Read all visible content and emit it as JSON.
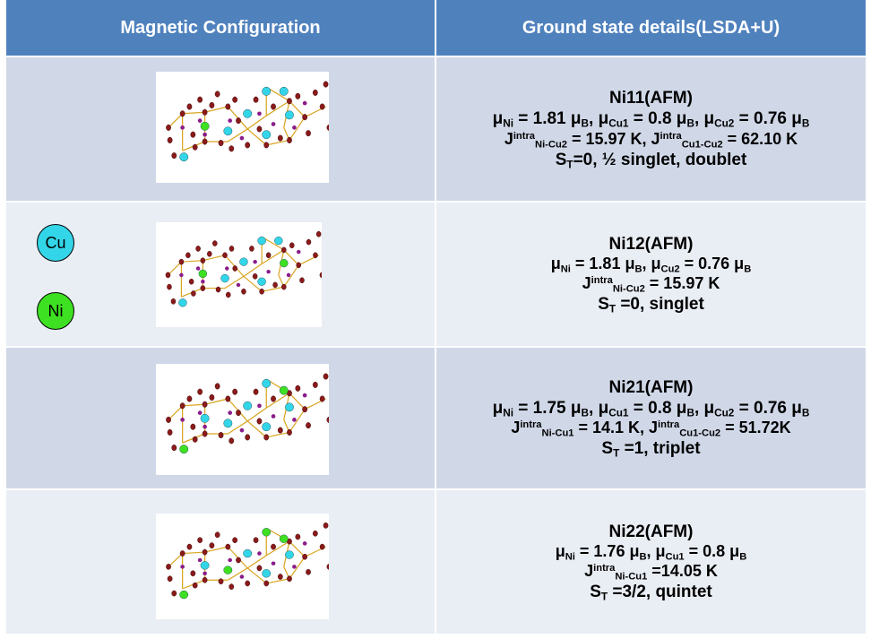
{
  "header": {
    "col1": "Magnetic Configuration",
    "col2": "Ground state details(LSDA+U)"
  },
  "legend": {
    "cu": "Cu",
    "ni": "Ni"
  },
  "colors": {
    "cu_atom": "#33d6e8",
    "ni_atom": "#3ee022",
    "o_atom": "#8b1a1a",
    "p_atom": "#8a1c8a",
    "bond": "#d9a521",
    "highlight_text": "#7030a0"
  },
  "rows": [
    {
      "name": "Ni11(AFM)",
      "moments": {
        "a": "μ",
        "a_sub": "Ni",
        "a_val": " = 1.81 μ",
        "a_unit": "B",
        "b": ", μ",
        "b_sub": "Cu1",
        "b_val": " = 0.8 μ",
        "b_unit": "B",
        "c": ", μ",
        "c_sub": "Cu2",
        "c_val": " = 0.76 μ",
        "c_unit": "B"
      },
      "coupling": {
        "j1": "J",
        "j1_sup": "intra",
        "j1_sub": "Ni-Cu2",
        "j1_val": " = 15.97 K,  ",
        "j2": "J",
        "j2_sup": "intra",
        "j2_sub": "Cu1-Cu2",
        "j2_val": " = 62.10 K"
      },
      "state": {
        "s": "S",
        "s_sub": "T",
        "s_val": "=0, ½ singlet, doublet"
      }
    },
    {
      "name": "Ni12(AFM)",
      "moments": {
        "a": "μ",
        "a_sub": "Ni",
        "a_val": " = 1.81 μ",
        "a_unit": "B",
        "b": ", μ",
        "b_sub": "Cu2",
        "b_val": " = 0.76 μ",
        "b_unit": "B"
      },
      "coupling": {
        "j1": "J",
        "j1_sup": "intra",
        "j1_sub": "Ni-Cu2",
        "j1_val": " = 15.97 K"
      },
      "state": {
        "s": "S",
        "s_sub": "T",
        "s_val": " =0, singlet"
      }
    },
    {
      "name": "Ni21(AFM)",
      "moments": {
        "a": "μ",
        "a_sub": "Ni",
        "a_val": " = 1.75 μ",
        "a_unit": "B",
        "b": ", μ",
        "b_sub": "Cu1",
        "b_val": " = 0.8 μ",
        "b_unit": "B",
        "c": ", μ",
        "c_sub": "Cu2",
        "c_val": " = 0.76 μ",
        "c_unit": "B"
      },
      "coupling": {
        "j1": "J",
        "j1_sup": "intra",
        "j1_sub": "Ni-Cu1",
        "j1_val": " = 14.1 K, ",
        "j2": "J",
        "j2_sup": "intra",
        "j2_sub": "Cu1-Cu2",
        "j2_val": " = 51.72K"
      },
      "state": {
        "s": "S",
        "s_sub": "T",
        "s_val": " =1, triplet"
      }
    },
    {
      "name": "Ni22(AFM)",
      "moments": {
        "a": "μ",
        "a_sub": "Ni",
        "a_val": " = 1.76 μ",
        "a_unit": "B",
        "b": ", μ",
        "b_sub": "Cu1",
        "b_val": " = 0.8 μ",
        "b_unit": "B"
      },
      "coupling": {
        "j1": "J",
        "j1_sup": "intra",
        "j1_sub": "Ni-Cu1",
        "j1_val": " =14.05 K"
      },
      "state": {
        "s": "S",
        "s_sub": "T",
        "s_val": " =3/2, quintet"
      }
    }
  ]
}
